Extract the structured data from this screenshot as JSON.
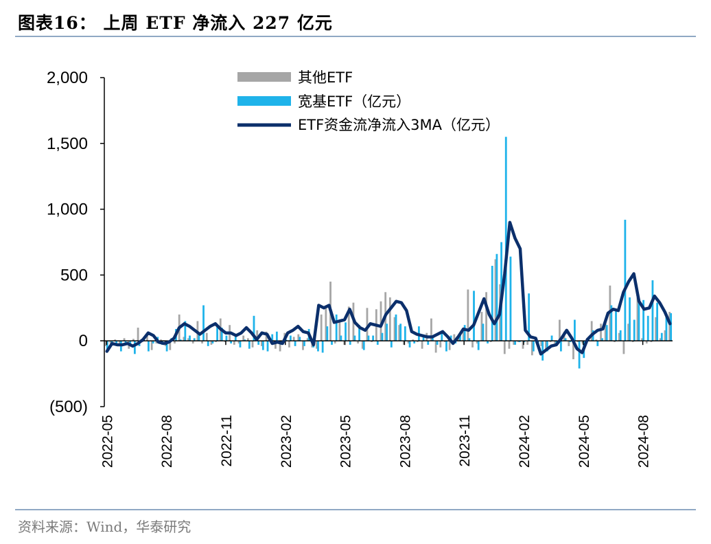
{
  "figure": {
    "title": "图表16：  上周 ETF 净流入 227 亿元",
    "source": "资料来源：Wind，华泰研究"
  },
  "chart_data": {
    "type": "bar+line",
    "ylim": [
      -500,
      2000
    ],
    "yticks": [
      -500,
      0,
      500,
      1000,
      1500,
      2000
    ],
    "ytick_labels": [
      "(500)",
      "0",
      "500",
      "1,000",
      "1,500",
      "2,000"
    ],
    "xtick_labels": [
      "2022-05",
      "2022-08",
      "2022-11",
      "2023-02",
      "2023-05",
      "2023-08",
      "2023-11",
      "2024-02",
      "2024-05",
      "2024-08"
    ],
    "xtick_index": [
      0,
      13,
      26,
      39,
      52,
      65,
      78,
      91,
      104,
      117
    ],
    "legend": {
      "other": "其他ETF",
      "broad": "宽基ETF（亿元）",
      "ma": "ETF资金流净流入3MA（亿元）"
    },
    "colors": {
      "other": "#a6a6a6",
      "broad": "#1fb3ea",
      "ma": "#0b2f6b"
    },
    "series": [
      {
        "name": "其他ETF",
        "values": [
          -40,
          -20,
          10,
          -30,
          20,
          -60,
          15,
          100,
          -10,
          60,
          -70,
          -20,
          10,
          -40,
          -70,
          -20,
          200,
          30,
          20,
          -20,
          150,
          -20,
          60,
          -30,
          -10,
          170,
          -10,
          120,
          -30,
          -20,
          40,
          20,
          -50,
          80,
          -40,
          70,
          20,
          -60,
          -80,
          60,
          -50,
          30,
          50,
          -70,
          20,
          -50,
          -60,
          200,
          270,
          450,
          -20,
          140,
          -30,
          260,
          290,
          -20,
          -60,
          250,
          -10,
          240,
          300,
          370,
          330,
          180,
          120,
          -30,
          -20,
          10,
          -10,
          -60,
          60,
          170,
          -90,
          -50,
          -10,
          -70,
          50,
          20,
          70,
          390,
          -50,
          -20,
          220,
          370,
          -10,
          620,
          430,
          -100,
          -60,
          -30,
          -10,
          -60,
          -30,
          -110,
          -20,
          -40,
          -60,
          -10,
          -20,
          160,
          70,
          -40,
          -140,
          -10,
          -20,
          20,
          150,
          10,
          130,
          160,
          420,
          -10,
          60,
          -100,
          130,
          -10,
          330,
          20,
          -20,
          -10,
          180,
          20,
          80,
          220
        ]
      },
      {
        "name": "宽基ETF",
        "values": [
          -80,
          -30,
          -20,
          -80,
          -20,
          -30,
          -100,
          -40,
          20,
          -80,
          -20,
          30,
          -30,
          -80,
          20,
          90,
          10,
          150,
          40,
          20,
          50,
          270,
          -40,
          -20,
          120,
          100,
          40,
          -20,
          30,
          -50,
          10,
          -60,
          190,
          -30,
          -70,
          -80,
          50,
          70,
          -30,
          10,
          40,
          -40,
          30,
          -40,
          90,
          -50,
          -80,
          -90,
          110,
          -30,
          200,
          40,
          140,
          -30,
          40,
          120,
          -70,
          40,
          40,
          -30,
          60,
          130,
          -50,
          200,
          130,
          110,
          -50,
          -20,
          110,
          30,
          -30,
          20,
          -30,
          60,
          -80,
          40,
          -20,
          60,
          120,
          20,
          380,
          -70,
          130,
          -20,
          570,
          660,
          750,
          1550,
          640,
          -30,
          -10,
          -10,
          360,
          -80,
          -30,
          -150,
          -80,
          40,
          -20,
          -80,
          20,
          -10,
          160,
          -210,
          -130,
          10,
          80,
          -40,
          20,
          120,
          270,
          240,
          80,
          920,
          330,
          160,
          290,
          310,
          190,
          460,
          290,
          60,
          200,
          210
        ]
      }
    ],
    "ma_3": [
      -80,
      -20,
      -30,
      -30,
      -20,
      -40,
      -20,
      10,
      60,
      40,
      -10,
      -20,
      -10,
      20,
      100,
      130,
      110,
      80,
      50,
      80,
      110,
      130,
      90,
      60,
      60,
      40,
      60,
      100,
      60,
      10,
      60,
      50,
      -20,
      -10,
      -20,
      60,
      80,
      110,
      70,
      60,
      -30,
      270,
      250,
      270,
      140,
      150,
      160,
      240,
      140,
      100,
      80,
      130,
      120,
      110,
      200,
      250,
      300,
      290,
      230,
      70,
      50,
      40,
      30,
      30,
      50,
      70,
      30,
      -20,
      30,
      90,
      80,
      120,
      220,
      320,
      200,
      130,
      200,
      510,
      900,
      780,
      700,
      80,
      30,
      20,
      -100,
      -70,
      -40,
      -30,
      20,
      80,
      20,
      -60,
      -90,
      10,
      50,
      80,
      90,
      210,
      240,
      230,
      370,
      450,
      510,
      300,
      240,
      250,
      340,
      290,
      220,
      130
    ]
  },
  "ma_note": "ma_3 has its own index; it is spread across the same x range as the bars"
}
